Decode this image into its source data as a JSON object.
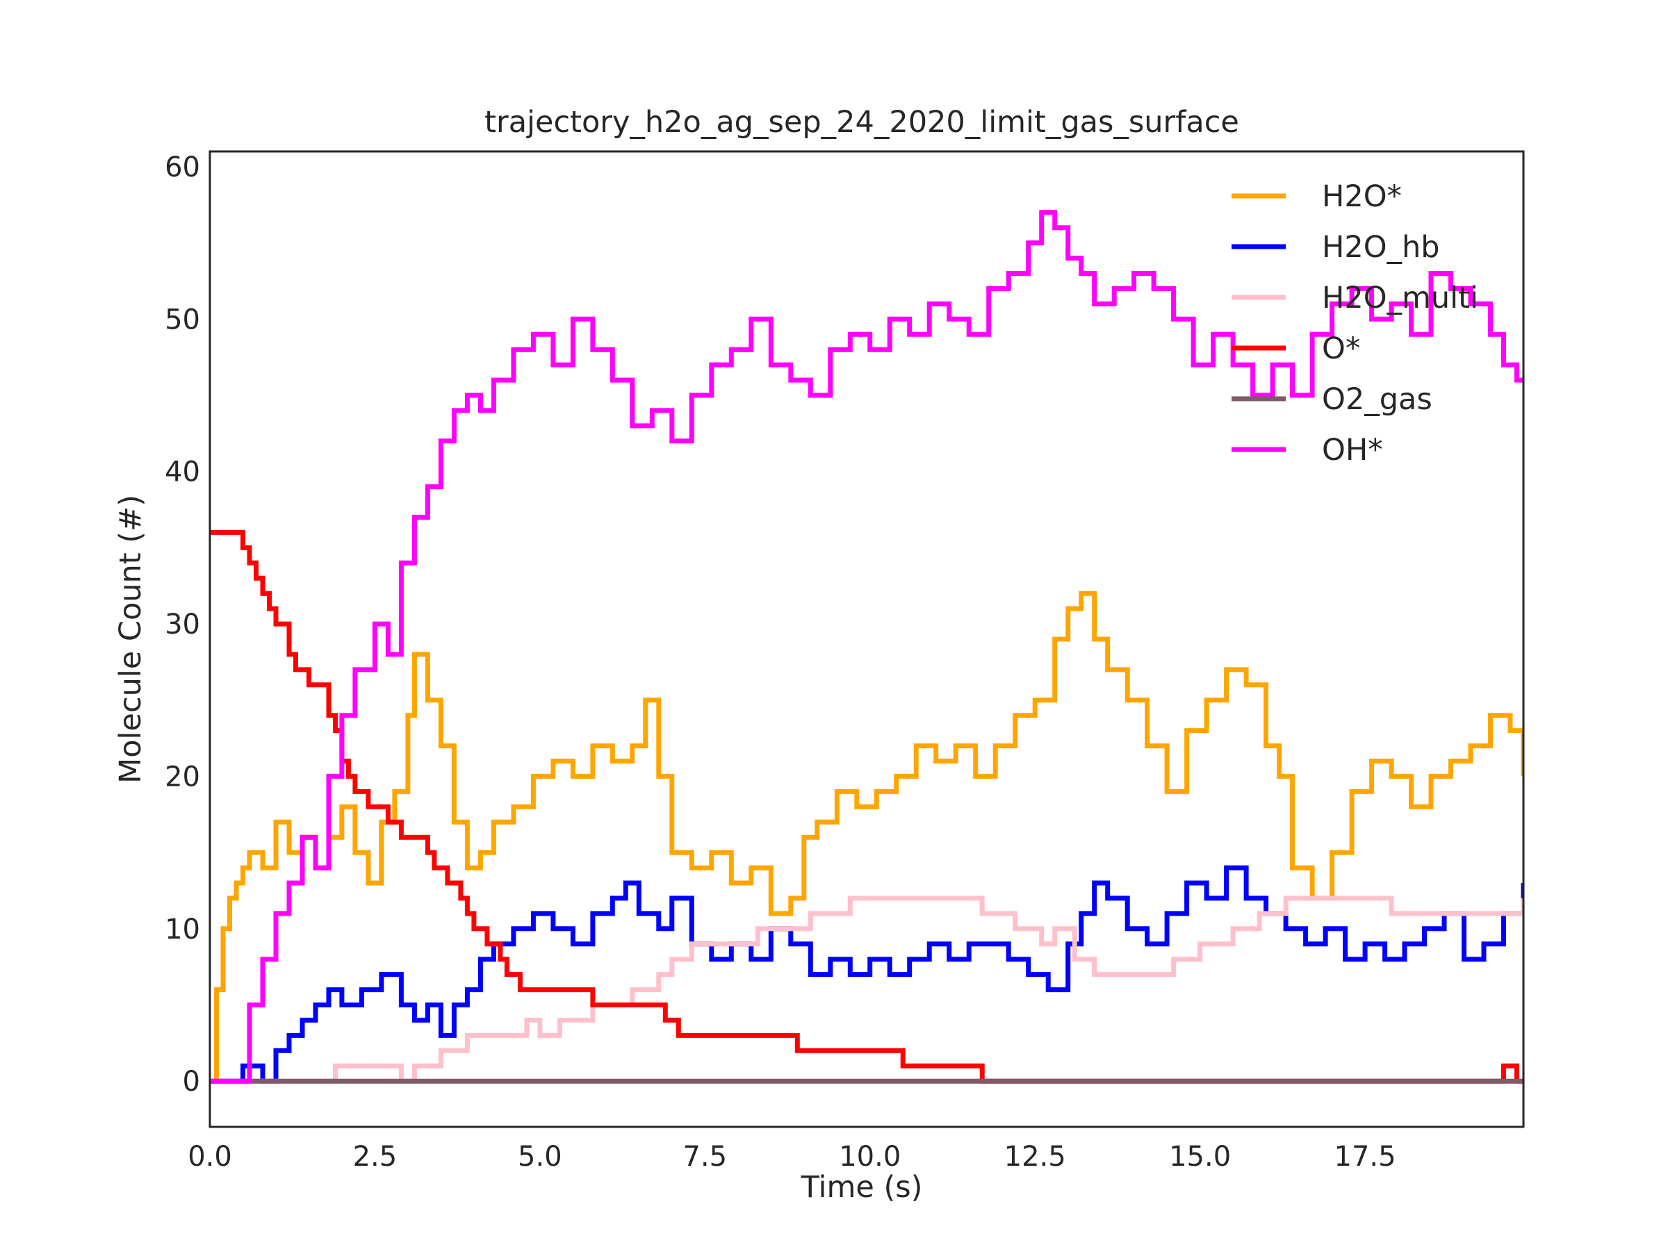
{
  "chart_data": {
    "type": "line",
    "title": "trajectory_h2o_ag_sep_24_2020_limit_gas_surface",
    "xlabel": "Time (s)",
    "ylabel": "Molecule Count (#)",
    "xlim": [
      0,
      19.9
    ],
    "ylim": [
      -3,
      61
    ],
    "xticks": [
      0.0,
      2.5,
      5.0,
      7.5,
      10.0,
      12.5,
      15.0,
      17.5
    ],
    "xtick_labels": [
      "0.0",
      "2.5",
      "5.0",
      "7.5",
      "10.0",
      "12.5",
      "15.0",
      "17.5"
    ],
    "yticks": [
      0,
      10,
      20,
      30,
      40,
      50,
      60
    ],
    "ytick_labels": [
      "0",
      "10",
      "20",
      "30",
      "40",
      "50",
      "60"
    ],
    "grid": false,
    "legend_position": "top-right",
    "step_style": "post",
    "series": [
      {
        "name": "H2O*",
        "color": "#ffa500",
        "x": [
          0.0,
          0.1,
          0.2,
          0.3,
          0.4,
          0.5,
          0.6,
          0.8,
          1.0,
          1.2,
          1.4,
          1.6,
          1.8,
          2.0,
          2.2,
          2.4,
          2.6,
          2.8,
          3.0,
          3.1,
          3.3,
          3.5,
          3.7,
          3.9,
          4.1,
          4.3,
          4.6,
          4.9,
          5.2,
          5.5,
          5.8,
          6.1,
          6.4,
          6.6,
          6.8,
          7.0,
          7.3,
          7.6,
          7.9,
          8.2,
          8.5,
          8.8,
          9.0,
          9.2,
          9.5,
          9.8,
          10.1,
          10.4,
          10.7,
          11.0,
          11.3,
          11.6,
          11.9,
          12.2,
          12.5,
          12.8,
          13.0,
          13.2,
          13.4,
          13.6,
          13.9,
          14.2,
          14.5,
          14.8,
          15.1,
          15.4,
          15.7,
          16.0,
          16.2,
          16.4,
          16.7,
          17.0,
          17.3,
          17.6,
          17.9,
          18.2,
          18.5,
          18.8,
          19.1,
          19.4,
          19.7,
          19.9
        ],
        "y": [
          0,
          6,
          10,
          12,
          13,
          14,
          15,
          14,
          17,
          15,
          16,
          14,
          16,
          18,
          15,
          13,
          17,
          19,
          24,
          28,
          25,
          22,
          17,
          14,
          15,
          17,
          18,
          20,
          21,
          20,
          22,
          21,
          22,
          25,
          20,
          15,
          14,
          15,
          13,
          14,
          11,
          12,
          16,
          17,
          19,
          18,
          19,
          20,
          22,
          21,
          22,
          20,
          22,
          24,
          25,
          29,
          31,
          32,
          29,
          27,
          25,
          22,
          19,
          23,
          25,
          27,
          26,
          22,
          20,
          14,
          12,
          15,
          19,
          21,
          20,
          18,
          20,
          21,
          22,
          24,
          23,
          20
        ]
      },
      {
        "name": "H2O_hb",
        "color": "#0000ff",
        "x": [
          0.0,
          0.5,
          0.8,
          1.0,
          1.2,
          1.4,
          1.6,
          1.8,
          2.0,
          2.3,
          2.6,
          2.9,
          3.1,
          3.3,
          3.5,
          3.7,
          3.9,
          4.1,
          4.3,
          4.6,
          4.9,
          5.2,
          5.5,
          5.8,
          6.1,
          6.3,
          6.5,
          6.8,
          7.0,
          7.3,
          7.6,
          7.9,
          8.2,
          8.5,
          8.8,
          9.1,
          9.4,
          9.7,
          10.0,
          10.3,
          10.6,
          10.9,
          11.2,
          11.5,
          11.8,
          12.1,
          12.4,
          12.7,
          13.0,
          13.2,
          13.4,
          13.6,
          13.9,
          14.2,
          14.5,
          14.8,
          15.1,
          15.4,
          15.7,
          16.0,
          16.3,
          16.6,
          16.9,
          17.2,
          17.5,
          17.8,
          18.1,
          18.4,
          18.7,
          19.0,
          19.3,
          19.6,
          19.9
        ],
        "y": [
          0,
          1,
          0,
          2,
          3,
          4,
          5,
          6,
          5,
          6,
          7,
          5,
          4,
          5,
          3,
          5,
          6,
          8,
          9,
          10,
          11,
          10,
          9,
          11,
          12,
          13,
          11,
          10,
          12,
          9,
          8,
          9,
          8,
          10,
          9,
          7,
          8,
          7,
          8,
          7,
          8,
          9,
          8,
          9,
          9,
          8,
          7,
          6,
          9,
          11,
          13,
          12,
          10,
          9,
          11,
          13,
          12,
          14,
          12,
          11,
          10,
          9,
          10,
          8,
          9,
          8,
          9,
          10,
          11,
          8,
          9,
          11,
          13
        ]
      },
      {
        "name": "H2O_multi",
        "color": "#ffc0cb",
        "x": [
          0.0,
          1.9,
          2.7,
          2.9,
          3.1,
          3.5,
          3.9,
          4.2,
          4.8,
          5.0,
          5.3,
          5.8,
          6.4,
          6.8,
          7.0,
          7.3,
          7.8,
          8.3,
          8.8,
          9.1,
          9.7,
          10.0,
          10.4,
          11.1,
          11.7,
          12.2,
          12.6,
          12.8,
          13.1,
          13.4,
          13.8,
          14.3,
          14.6,
          15.0,
          15.5,
          15.9,
          16.3,
          16.7,
          17.2,
          17.9,
          18.4,
          19.0,
          19.5,
          19.9
        ],
        "y": [
          0,
          1,
          1,
          0,
          1,
          2,
          3,
          3,
          4,
          3,
          4,
          5,
          6,
          7,
          8,
          9,
          9,
          10,
          10,
          11,
          12,
          12,
          12,
          12,
          11,
          10,
          9,
          10,
          8,
          7,
          7,
          7,
          8,
          9,
          10,
          11,
          12,
          12,
          12,
          11,
          11,
          11,
          11,
          12
        ]
      },
      {
        "name": "O*",
        "color": "#ff0000",
        "x": [
          0.0,
          0.5,
          0.6,
          0.7,
          0.8,
          0.9,
          1.0,
          1.2,
          1.3,
          1.5,
          1.8,
          1.9,
          2.0,
          2.1,
          2.2,
          2.4,
          2.7,
          2.9,
          3.0,
          3.3,
          3.4,
          3.6,
          3.8,
          3.9,
          4.0,
          4.2,
          4.4,
          4.5,
          4.7,
          5.0,
          5.8,
          6.9,
          7.1,
          8.9,
          10.5,
          11.7,
          19.6,
          19.8
        ],
        "y": [
          36,
          35,
          34,
          33,
          32,
          31,
          30,
          28,
          27,
          26,
          24,
          23,
          21,
          20,
          19,
          18,
          17,
          16,
          16,
          15,
          14,
          13,
          12,
          11,
          10,
          9,
          8,
          7,
          6,
          6,
          5,
          4,
          3,
          2,
          1,
          0,
          1,
          0
        ]
      },
      {
        "name": "O2_gas",
        "color": "#7f5a6a",
        "x": [
          0.0,
          19.9
        ],
        "y": [
          0,
          0
        ]
      },
      {
        "name": "OH*",
        "color": "#ff00ff",
        "x": [
          0.0,
          0.6,
          0.8,
          1.0,
          1.2,
          1.4,
          1.6,
          1.8,
          2.0,
          2.2,
          2.5,
          2.7,
          2.9,
          3.1,
          3.3,
          3.5,
          3.7,
          3.9,
          4.1,
          4.3,
          4.6,
          4.9,
          5.2,
          5.5,
          5.8,
          6.1,
          6.4,
          6.7,
          7.0,
          7.3,
          7.6,
          7.9,
          8.2,
          8.5,
          8.8,
          9.1,
          9.4,
          9.7,
          10.0,
          10.3,
          10.6,
          10.9,
          11.2,
          11.5,
          11.8,
          12.1,
          12.4,
          12.6,
          12.8,
          13.0,
          13.2,
          13.4,
          13.7,
          14.0,
          14.3,
          14.6,
          14.9,
          15.2,
          15.5,
          15.8,
          16.1,
          16.4,
          16.7,
          17.0,
          17.3,
          17.6,
          17.9,
          18.2,
          18.5,
          18.8,
          19.1,
          19.4,
          19.6,
          19.8
        ],
        "y": [
          0,
          5,
          8,
          11,
          13,
          16,
          14,
          20,
          24,
          27,
          30,
          28,
          34,
          37,
          39,
          42,
          44,
          45,
          44,
          46,
          48,
          49,
          47,
          50,
          48,
          46,
          43,
          44,
          42,
          45,
          47,
          48,
          50,
          47,
          46,
          45,
          48,
          49,
          48,
          50,
          49,
          51,
          50,
          49,
          52,
          53,
          55,
          57,
          56,
          54,
          53,
          51,
          52,
          53,
          52,
          50,
          47,
          49,
          47,
          45,
          47,
          45,
          49,
          51,
          52,
          50,
          51,
          49,
          53,
          52,
          51,
          49,
          47,
          46
        ]
      }
    ]
  }
}
